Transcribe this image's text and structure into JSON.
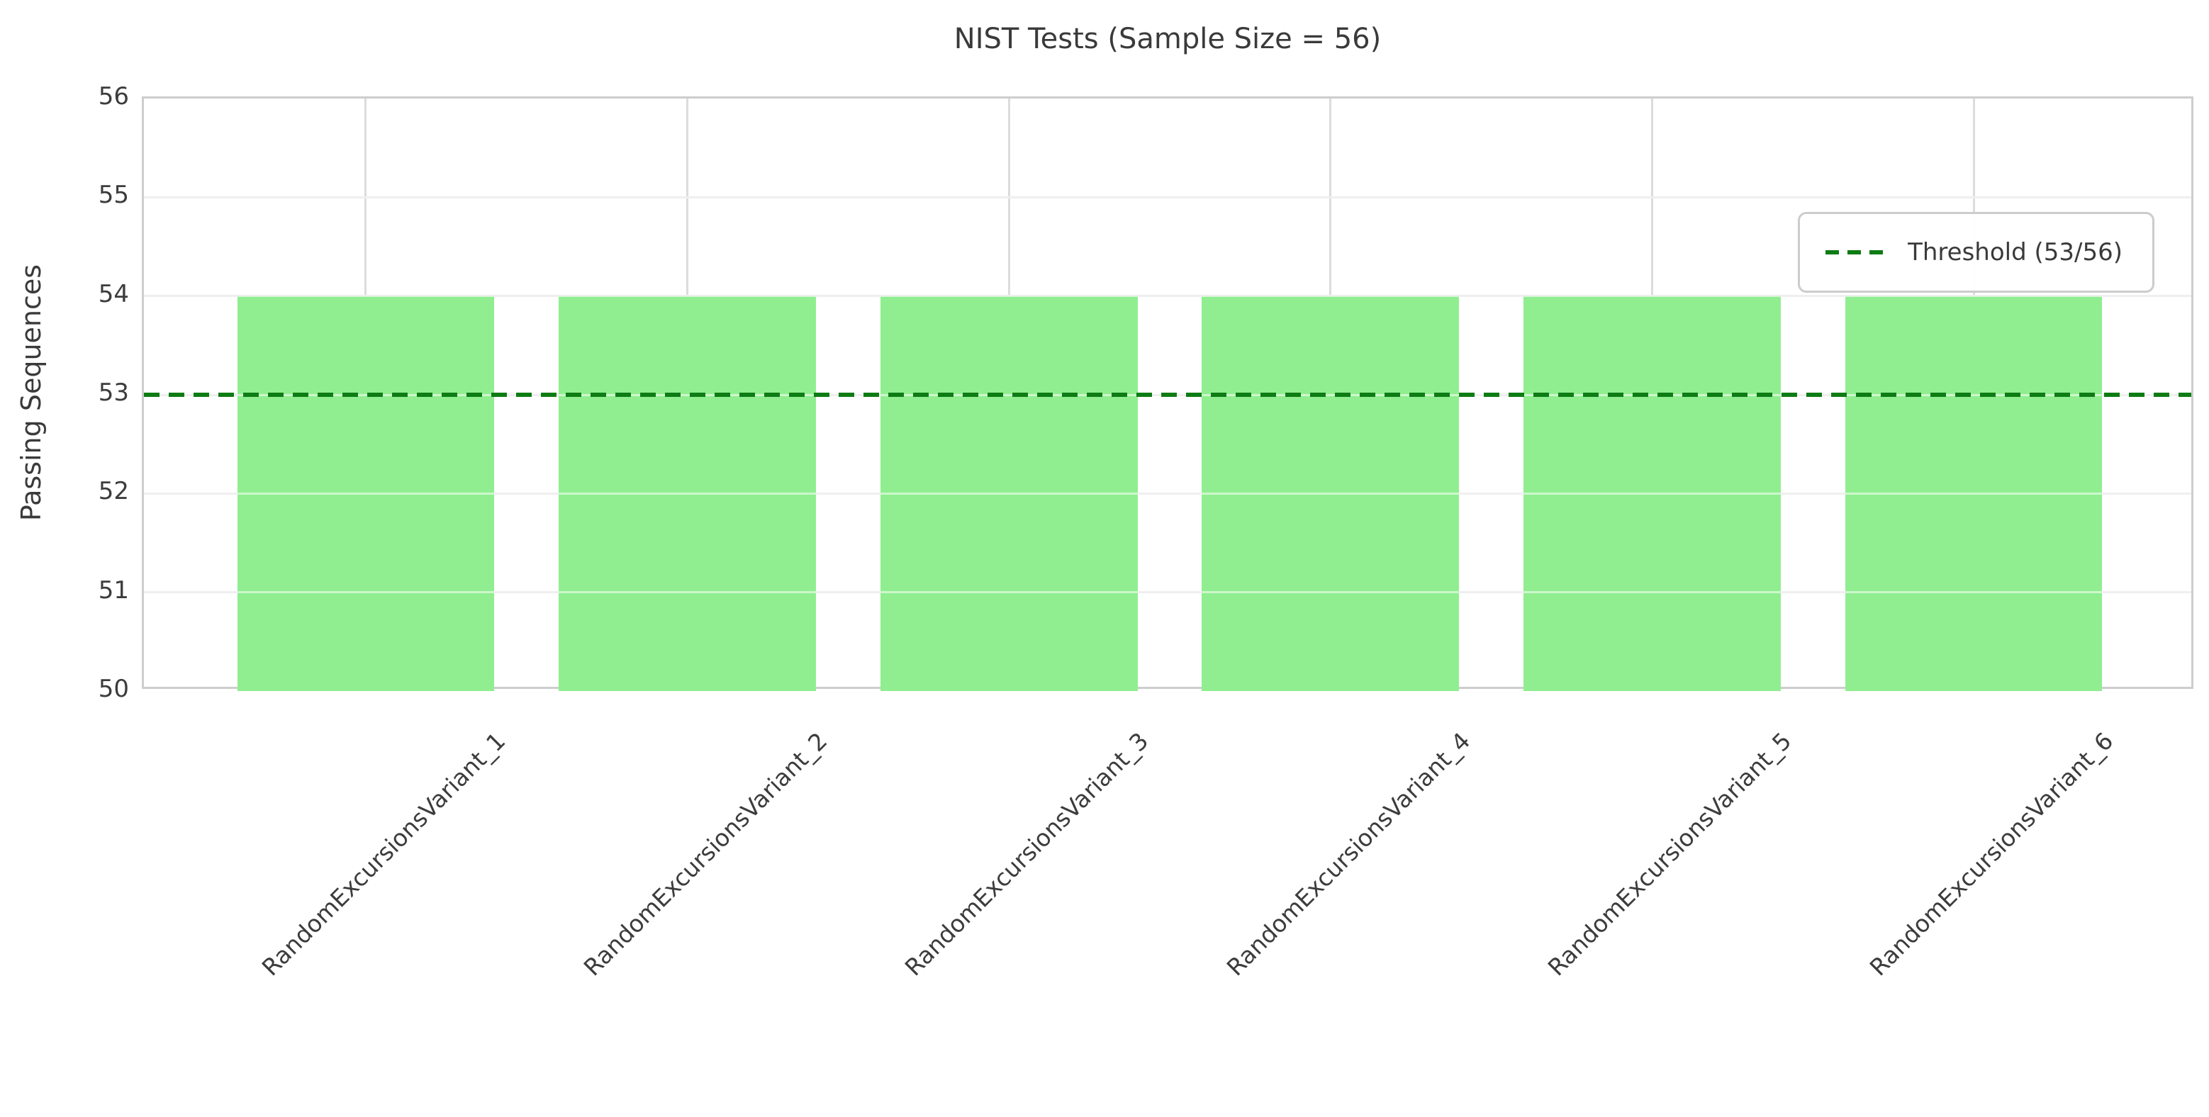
{
  "chart_data": {
    "type": "bar",
    "title": "NIST Tests (Sample Size = 56)",
    "xlabel": "",
    "ylabel": "Passing Sequences",
    "categories": [
      "RandomExcursionsVariant_1",
      "RandomExcursionsVariant_2",
      "RandomExcursionsVariant_3",
      "RandomExcursionsVariant_4",
      "RandomExcursionsVariant_5",
      "RandomExcursionsVariant_6"
    ],
    "values": [
      54,
      54,
      54,
      54,
      54,
      54
    ],
    "ylim": [
      50,
      56
    ],
    "yticks": [
      50,
      51,
      52,
      53,
      54,
      55,
      56
    ],
    "x_tick_rotation_deg": 45,
    "grid": true,
    "sample_size": 56,
    "threshold": {
      "value": 53,
      "label": "Threshold (53/56)",
      "color": "#0e7c14",
      "linestyle": "dashed"
    },
    "legend_position": "upper right",
    "bar_color": "#90ee90"
  },
  "colors": {
    "bar": "#90ee90",
    "threshold_line": "#0e7c14",
    "grid": "#dcdcdc",
    "axes_border": "#cdcdcd",
    "text": "#3a3a3a"
  }
}
